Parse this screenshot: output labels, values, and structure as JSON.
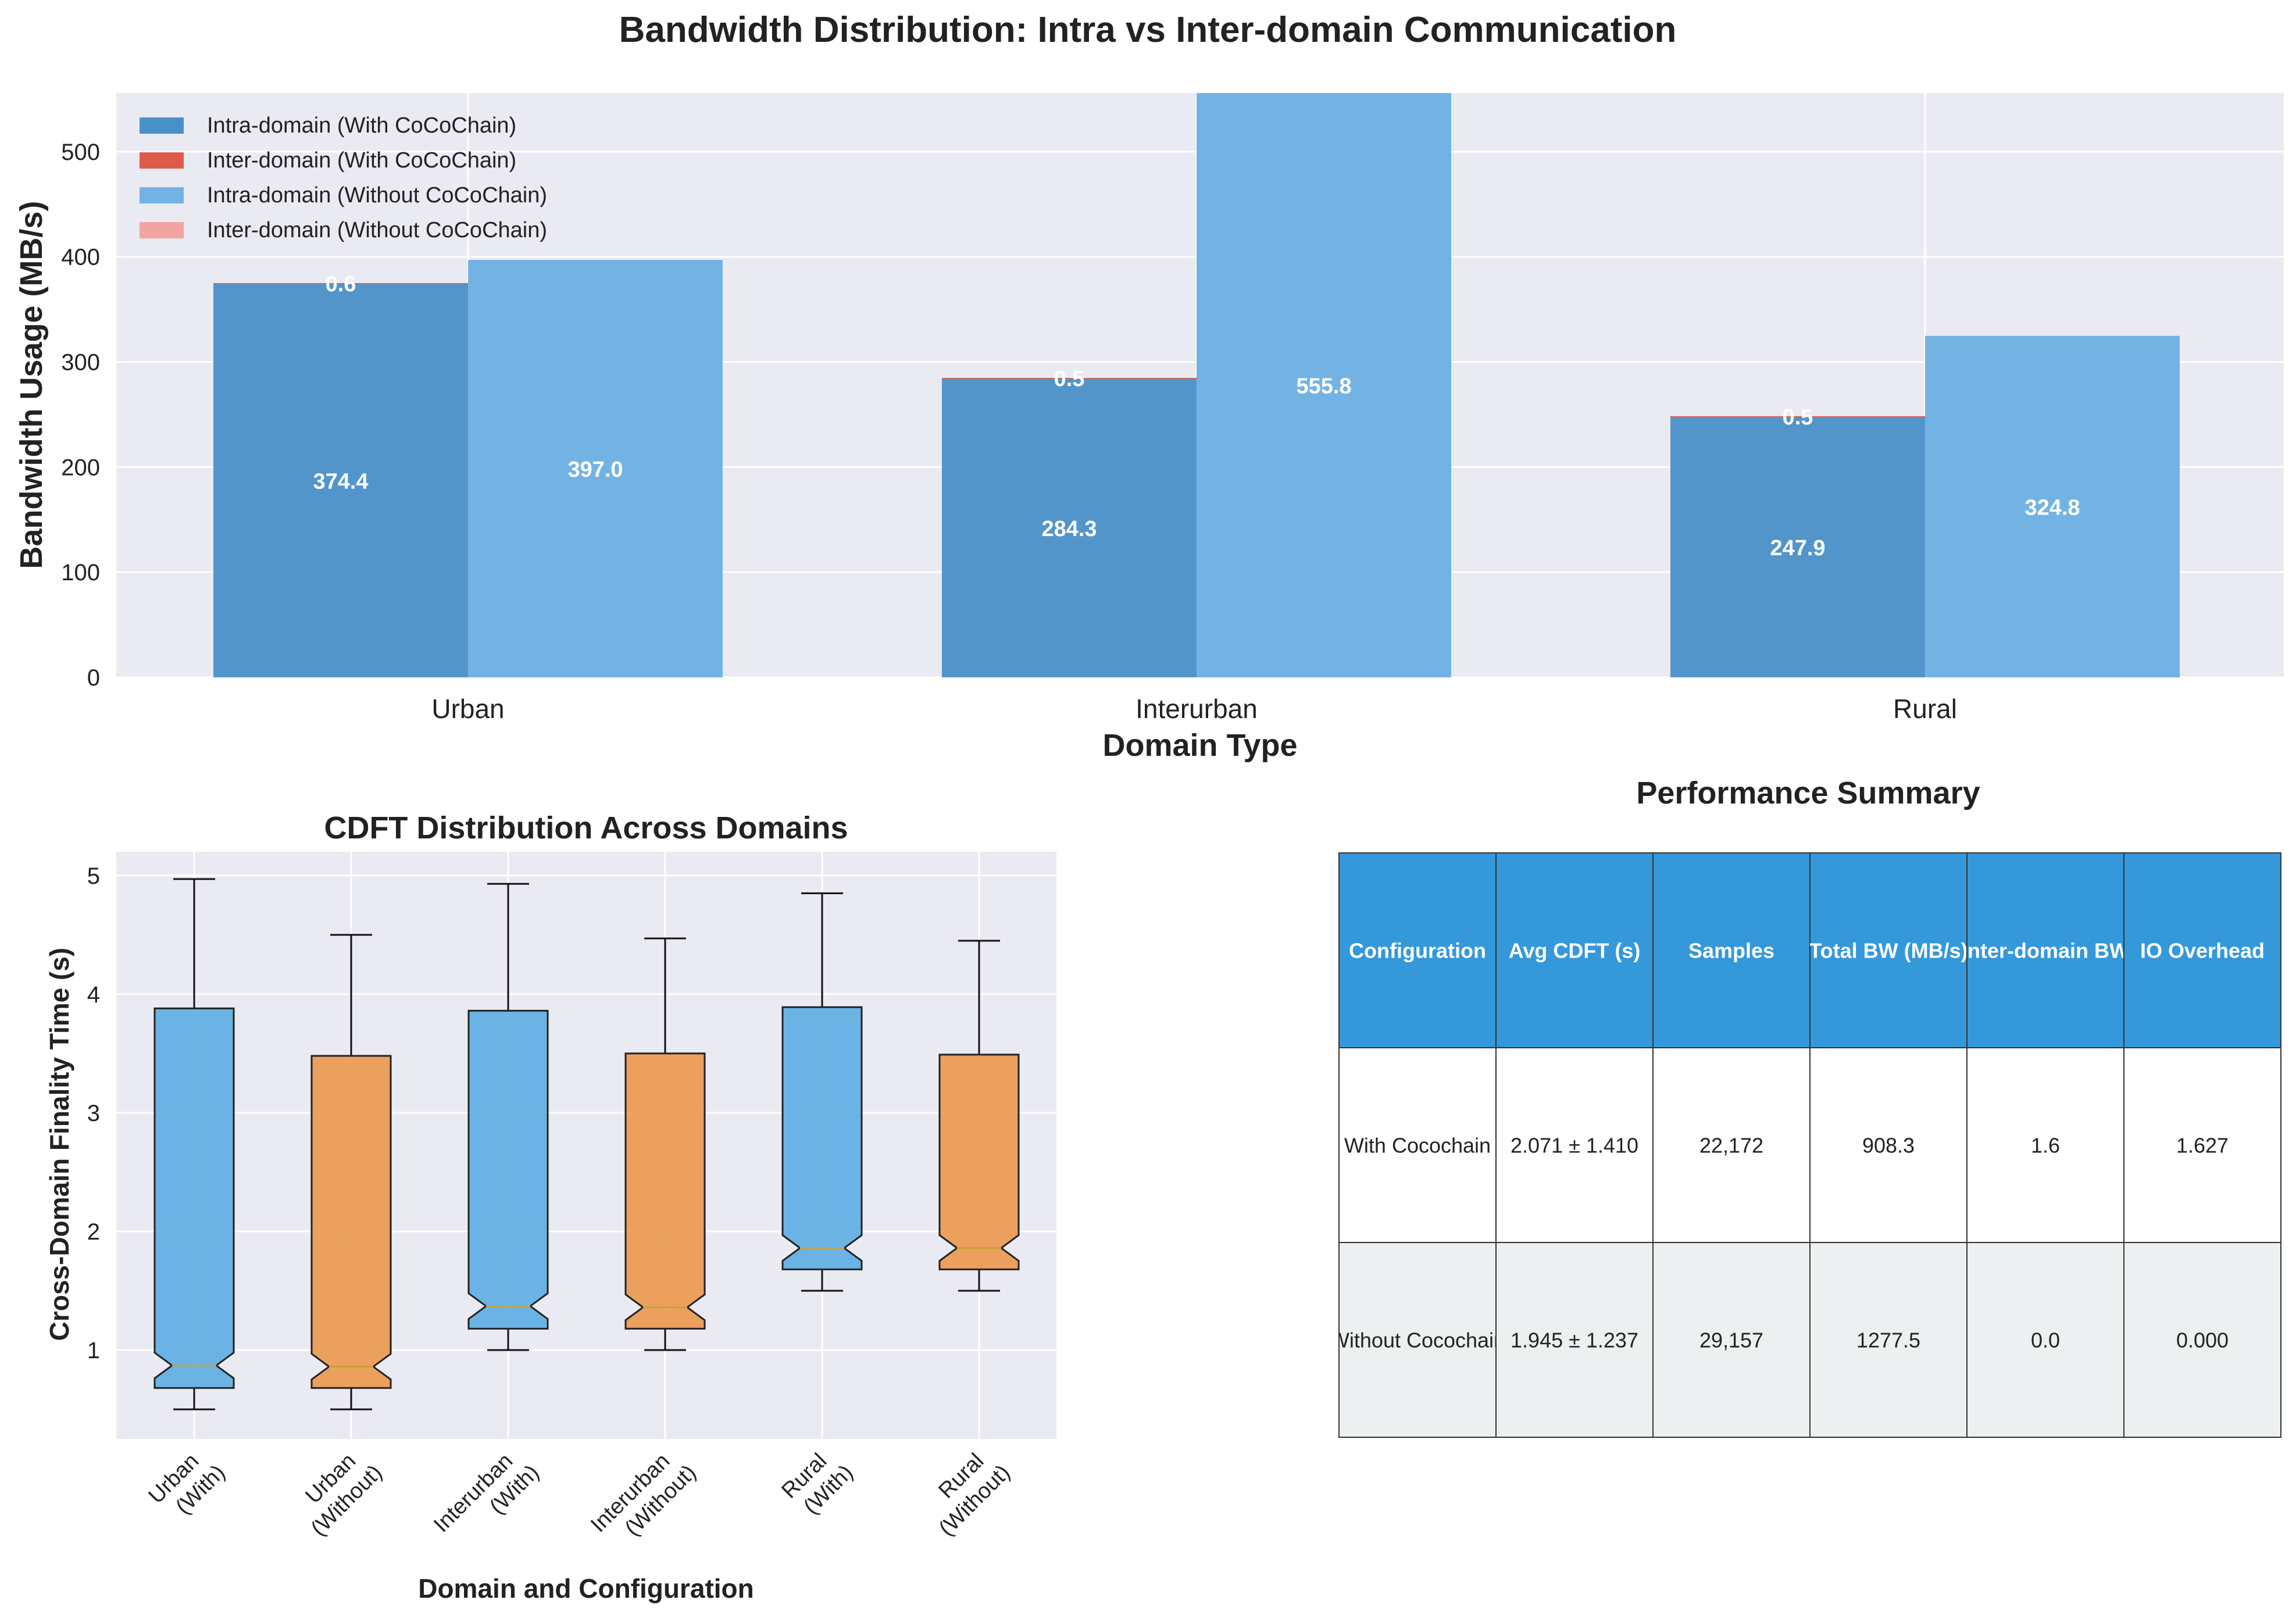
{
  "figure_title": "Bandwidth Distribution: Intra vs Inter-domain Communication",
  "colors": {
    "intra_with": "#4a90c8",
    "inter_with": "#e05a4c",
    "intra_without": "#73b3e3",
    "inter_without": "#f1a5a0",
    "box_with": "#5dade2",
    "box_without": "#eb984e",
    "plot_bg": "#eaeaf2",
    "table_header": "#3498db",
    "table_row_alt": "#ecf0f1"
  },
  "chart_data": [
    {
      "type": "bar",
      "title": "",
      "xlabel": "Domain Type",
      "ylabel": "Bandwidth Usage (MB/s)",
      "categories": [
        "Urban",
        "Interurban",
        "Rural"
      ],
      "ylim": [
        0,
        555.8
      ],
      "yticks": [
        0,
        100,
        200,
        300,
        400,
        500
      ],
      "grid": true,
      "legend": "top-left",
      "stacked": true,
      "series": [
        {
          "name": "Intra-domain (With CoCoChain)",
          "group": "with",
          "values": [
            374.4,
            284.3,
            247.9
          ],
          "labels": [
            "374.4",
            "284.3",
            "247.9"
          ]
        },
        {
          "name": "Inter-domain (With CoCoChain)",
          "group": "with",
          "values": [
            0.6,
            0.5,
            0.5
          ],
          "labels": [
            "0.6",
            "0.5",
            "0.5"
          ]
        },
        {
          "name": "Intra-domain (Without CoCoChain)",
          "group": "without",
          "values": [
            397.0,
            555.8,
            324.8
          ],
          "labels": [
            "397.0",
            "555.8",
            "324.8"
          ]
        },
        {
          "name": "Inter-domain (Without CoCoChain)",
          "group": "without",
          "values": [
            0,
            0,
            0
          ],
          "labels": []
        }
      ]
    },
    {
      "type": "box",
      "title": "CDFT Distribution Across Domains",
      "xlabel": "Domain and Configuration",
      "ylabel": "Cross-Domain Finality Time (s)",
      "ylim": [
        0.25,
        5.2
      ],
      "yticks": [
        1,
        2,
        3,
        4,
        5
      ],
      "grid": true,
      "categories": [
        [
          "Urban",
          "(With)"
        ],
        [
          "Urban",
          "(Without)"
        ],
        [
          "Interurban",
          "(With)"
        ],
        [
          "Interurban",
          "(Without)"
        ],
        [
          "Rural",
          "(With)"
        ],
        [
          "Rural",
          "(Without)"
        ]
      ],
      "boxes": [
        {
          "config": "with",
          "whislo": 0.5,
          "q1": 0.68,
          "med": 0.87,
          "q3": 3.88,
          "whishi": 4.97
        },
        {
          "config": "without",
          "whislo": 0.5,
          "q1": 0.68,
          "med": 0.86,
          "q3": 3.48,
          "whishi": 4.5
        },
        {
          "config": "with",
          "whislo": 1.0,
          "q1": 1.18,
          "med": 1.37,
          "q3": 3.86,
          "whishi": 4.93
        },
        {
          "config": "without",
          "whislo": 1.0,
          "q1": 1.18,
          "med": 1.36,
          "q3": 3.5,
          "whishi": 4.47
        },
        {
          "config": "with",
          "whislo": 1.5,
          "q1": 1.68,
          "med": 1.86,
          "q3": 3.89,
          "whishi": 4.85
        },
        {
          "config": "without",
          "whislo": 1.5,
          "q1": 1.68,
          "med": 1.86,
          "q3": 3.49,
          "whishi": 4.45
        }
      ]
    },
    {
      "type": "table",
      "title": "Performance Summary",
      "columns": [
        "Configuration",
        "Avg CDFT (s)",
        "Samples",
        "Total BW (MB/s)",
        "Inter-domain BW",
        "IO Overhead"
      ],
      "rows": [
        [
          "With Cocochain",
          "2.071 ± 1.410",
          "22,172",
          "908.3",
          "1.6",
          "1.627"
        ],
        [
          "Without Cocochain",
          "1.945 ± 1.237",
          "29,157",
          "1277.5",
          "0.0",
          "0.000"
        ]
      ]
    }
  ]
}
